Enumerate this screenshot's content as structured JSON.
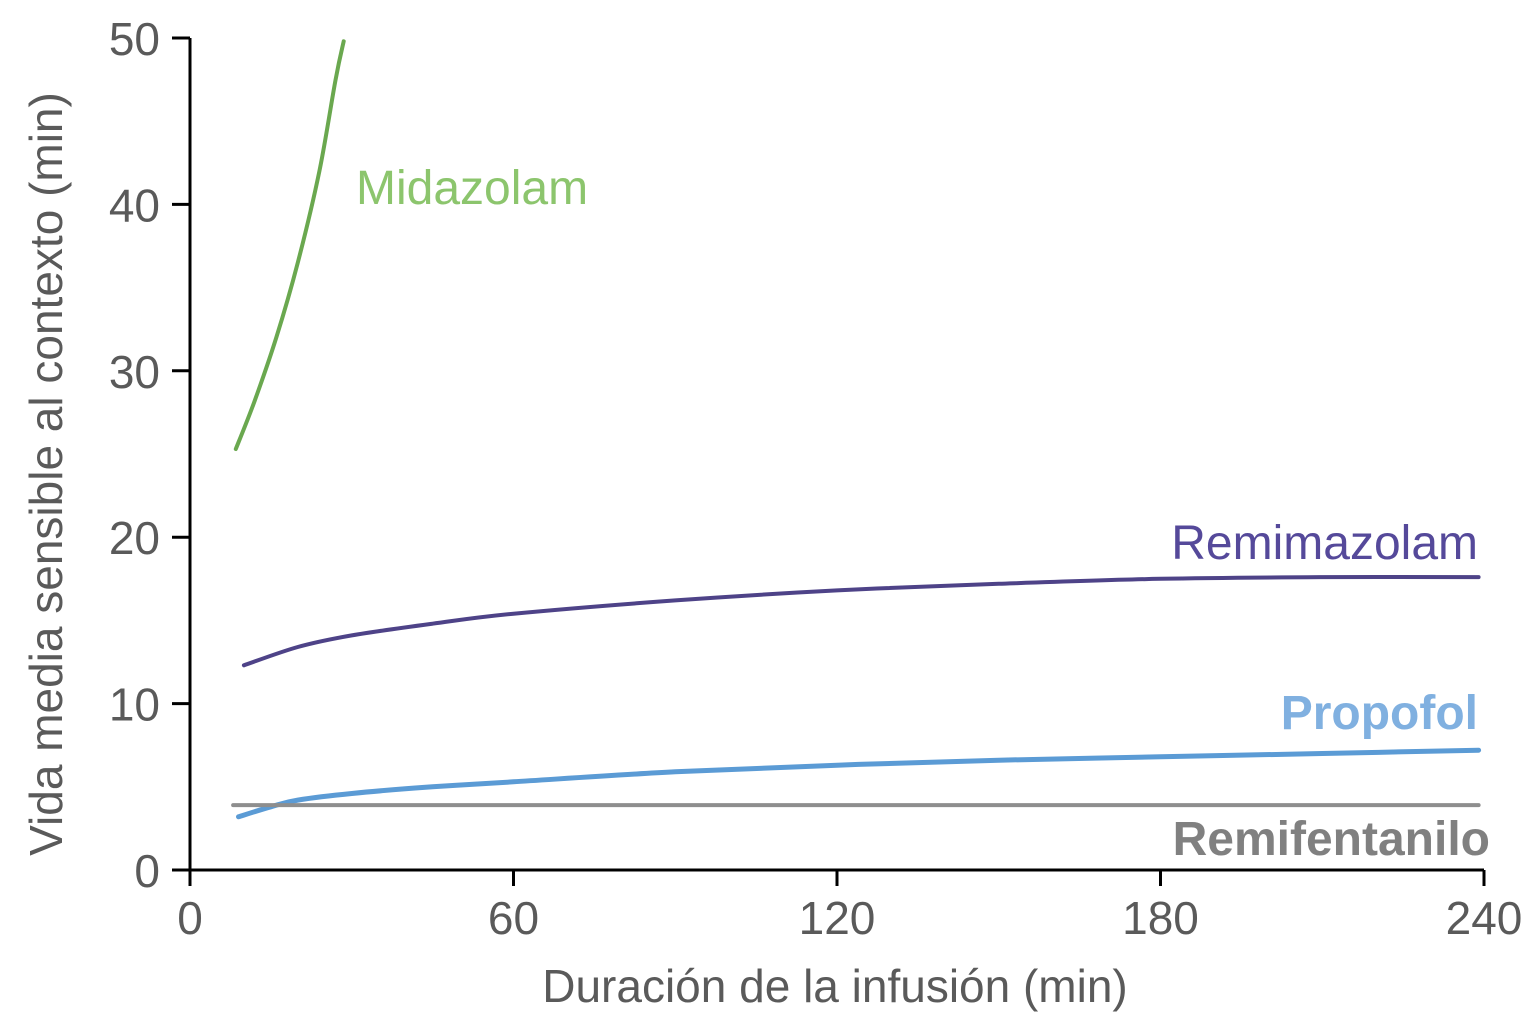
{
  "chart_data": {
    "type": "line",
    "title": "",
    "xlabel": "Duración de la infusión (min)",
    "ylabel": "Vida media sensible al contexto (min)",
    "xlim": [
      0,
      240
    ],
    "ylim": [
      0,
      50
    ],
    "xticks": [
      0,
      60,
      120,
      180,
      240
    ],
    "yticks": [
      0,
      10,
      20,
      30,
      40,
      50
    ],
    "grid": false,
    "legend": "inline labels next to each line",
    "series": [
      {
        "name": "Midazolam",
        "color": "#6aa84f",
        "label_color": "#8cc56d",
        "label_bold": false,
        "x": [
          8.5,
          12,
          16,
          20,
          24,
          27,
          28.5
        ],
        "y": [
          25.3,
          28.2,
          32.0,
          36.5,
          42.0,
          47.5,
          49.8
        ]
      },
      {
        "name": "Remimazolam",
        "color": "#4e4388",
        "label_color": "#55499a",
        "label_bold": false,
        "x": [
          10,
          20,
          30,
          45,
          60,
          90,
          120,
          150,
          180,
          210,
          239
        ],
        "y": [
          12.3,
          13.4,
          14.1,
          14.8,
          15.4,
          16.2,
          16.8,
          17.2,
          17.5,
          17.6,
          17.6
        ]
      },
      {
        "name": "Propofol",
        "color": "#5b9bd5",
        "label_color": "#80b0e0",
        "label_bold": true,
        "x": [
          9,
          15,
          20,
          30,
          45,
          60,
          90,
          120,
          150,
          180,
          210,
          239
        ],
        "y": [
          3.2,
          3.8,
          4.2,
          4.6,
          5.0,
          5.3,
          5.9,
          6.3,
          6.6,
          6.8,
          7.0,
          7.2
        ]
      },
      {
        "name": "Remifentanilo",
        "color": "#8e8e8e",
        "label_color": "#808080",
        "label_bold": true,
        "x": [
          8,
          239
        ],
        "y": [
          3.9,
          3.9
        ]
      }
    ]
  }
}
